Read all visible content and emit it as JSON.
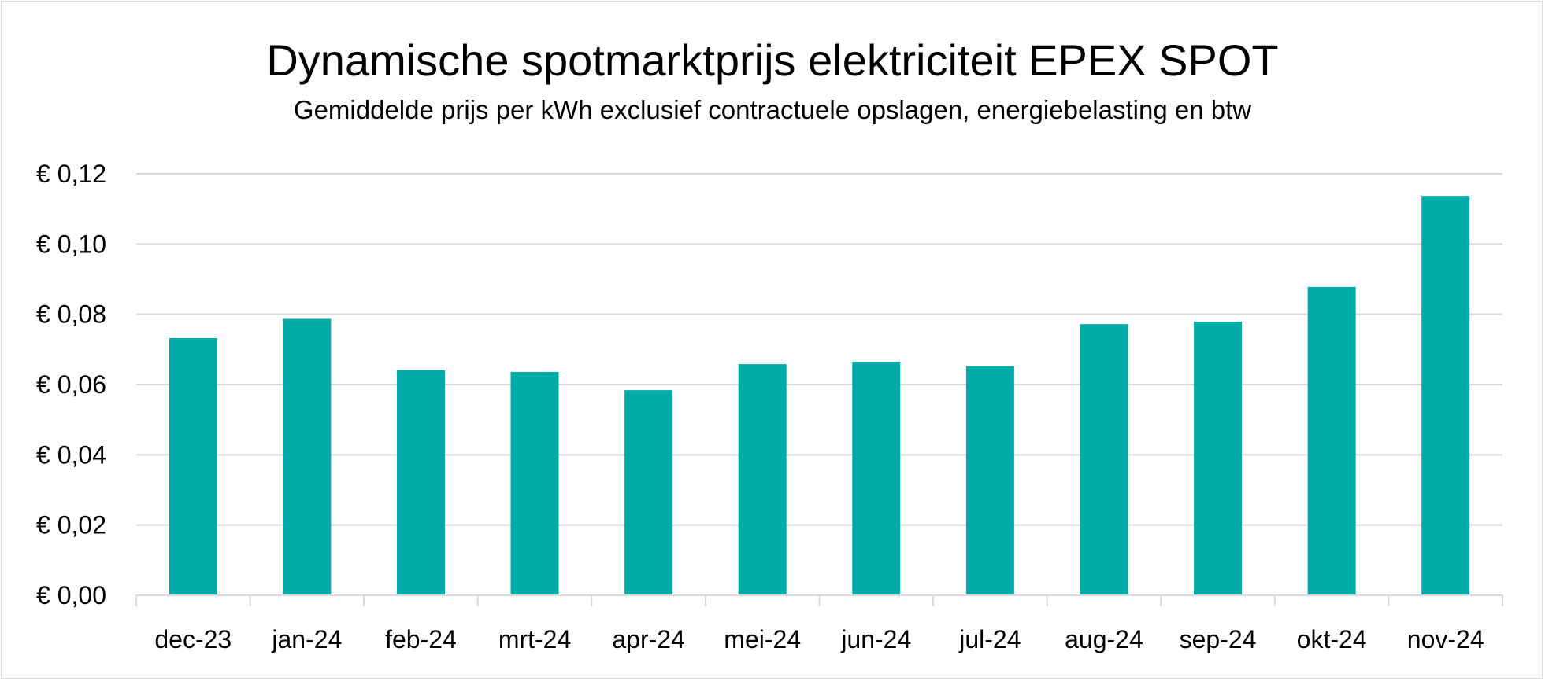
{
  "chart_data": {
    "type": "bar",
    "title": "Dynamische spotmarktprijs elektriciteit EPEX SPOT",
    "subtitle": "Gemiddelde prijs per kWh exclusief contractuele opslagen, energiebelasting en btw",
    "xlabel": "",
    "ylabel": "",
    "categories": [
      "dec-23",
      "jan-24",
      "feb-24",
      "mrt-24",
      "apr-24",
      "mei-24",
      "jun-24",
      "jul-24",
      "aug-24",
      "sep-24",
      "okt-24",
      "nov-24"
    ],
    "values": [
      0.0732,
      0.0787,
      0.0641,
      0.0636,
      0.0584,
      0.0658,
      0.0665,
      0.0652,
      0.0772,
      0.0779,
      0.0878,
      0.1137
    ],
    "ylim": [
      0,
      0.12
    ],
    "yticks": [
      0,
      0.02,
      0.04,
      0.06,
      0.08,
      0.1,
      0.12
    ],
    "ytick_labels": [
      "€ 0,00",
      "€ 0,02",
      "€ 0,04",
      "€ 0,06",
      "€ 0,08",
      "€ 0,10",
      "€ 0,12"
    ],
    "grid": true,
    "legend": "none",
    "colors": {
      "bar": "#00ABA8",
      "grid": "#D9D9D9",
      "axis": "#D9D9D9",
      "text": "#000000"
    }
  }
}
